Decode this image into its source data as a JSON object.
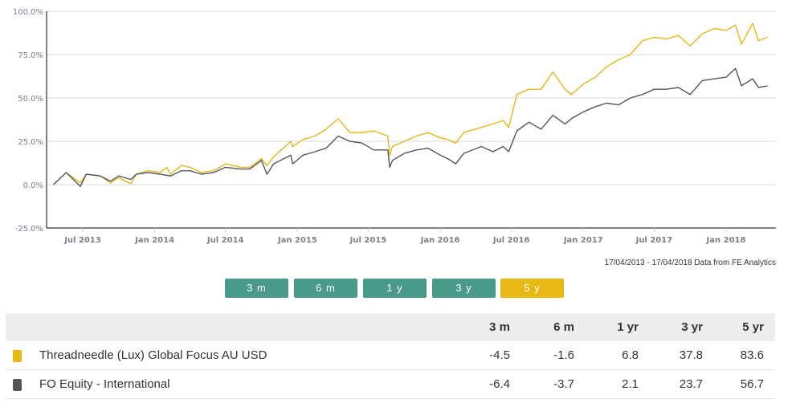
{
  "chart_data": {
    "type": "line",
    "title": "",
    "xlabel": "",
    "ylabel": "",
    "ylim": [
      -25,
      100
    ],
    "xlim": [
      "2013-04-17",
      "2018-04-17"
    ],
    "yticks": [
      "-25.0%",
      "0.0%",
      "25.0%",
      "50.0%",
      "75.0%",
      "100.0%"
    ],
    "ytick_values": [
      -25,
      0,
      25,
      50,
      75,
      100
    ],
    "xticks": [
      {
        "label": "Jul 2013",
        "date": "2013-07-01"
      },
      {
        "label": "Jan 2014",
        "date": "2014-01-01"
      },
      {
        "label": "Jul 2014",
        "date": "2014-07-01"
      },
      {
        "label": "Jan 2015",
        "date": "2015-01-01"
      },
      {
        "label": "Jul 2015",
        "date": "2015-07-01"
      },
      {
        "label": "Jan 2016",
        "date": "2016-01-01"
      },
      {
        "label": "Jul 2016",
        "date": "2016-07-01"
      },
      {
        "label": "Jan 2017",
        "date": "2017-01-01"
      },
      {
        "label": "Jul 2017",
        "date": "2017-07-01"
      },
      {
        "label": "Jan 2018",
        "date": "2018-01-01"
      }
    ],
    "grid": true,
    "series": [
      {
        "name": "Threadneedle (Lux) Global Focus AU USD",
        "color": "#e3b71b",
        "points": [
          [
            "2013-04-17",
            0
          ],
          [
            "2013-05-20",
            7
          ],
          [
            "2013-06-25",
            1
          ],
          [
            "2013-07-10",
            6
          ],
          [
            "2013-08-15",
            5
          ],
          [
            "2013-09-10",
            1
          ],
          [
            "2013-10-01",
            4
          ],
          [
            "2013-11-01",
            0.5
          ],
          [
            "2013-11-15",
            6
          ],
          [
            "2013-12-15",
            8
          ],
          [
            "2014-01-15",
            7
          ],
          [
            "2014-02-01",
            10
          ],
          [
            "2014-02-10",
            6
          ],
          [
            "2014-03-10",
            11
          ],
          [
            "2014-04-01",
            10
          ],
          [
            "2014-05-01",
            7
          ],
          [
            "2014-06-01",
            8
          ],
          [
            "2014-07-01",
            12
          ],
          [
            "2014-08-10",
            10
          ],
          [
            "2014-09-01",
            10
          ],
          [
            "2014-10-01",
            15
          ],
          [
            "2014-10-15",
            11
          ],
          [
            "2014-11-01",
            16
          ],
          [
            "2014-12-15",
            25
          ],
          [
            "2014-12-20",
            22
          ],
          [
            "2015-01-15",
            26
          ],
          [
            "2015-02-15",
            28
          ],
          [
            "2015-03-15",
            32
          ],
          [
            "2015-04-15",
            38
          ],
          [
            "2015-05-15",
            30
          ],
          [
            "2015-06-15",
            30
          ],
          [
            "2015-07-15",
            31
          ],
          [
            "2015-08-20",
            28
          ],
          [
            "2015-08-25",
            17
          ],
          [
            "2015-09-01",
            22
          ],
          [
            "2015-10-01",
            25
          ],
          [
            "2015-11-01",
            28
          ],
          [
            "2015-12-01",
            30
          ],
          [
            "2016-01-01",
            27
          ],
          [
            "2016-01-20",
            26
          ],
          [
            "2016-02-10",
            24
          ],
          [
            "2016-03-01",
            30
          ],
          [
            "2016-04-15",
            33
          ],
          [
            "2016-05-15",
            35
          ],
          [
            "2016-06-10",
            37
          ],
          [
            "2016-06-24",
            33
          ],
          [
            "2016-07-15",
            52
          ],
          [
            "2016-08-15",
            55
          ],
          [
            "2016-09-15",
            55
          ],
          [
            "2016-10-15",
            65
          ],
          [
            "2016-11-15",
            55
          ],
          [
            "2016-12-01",
            52
          ],
          [
            "2017-01-01",
            58
          ],
          [
            "2017-02-01",
            62
          ],
          [
            "2017-03-01",
            68
          ],
          [
            "2017-04-01",
            72
          ],
          [
            "2017-05-01",
            75
          ],
          [
            "2017-06-01",
            83
          ],
          [
            "2017-07-01",
            85
          ],
          [
            "2017-08-01",
            84
          ],
          [
            "2017-09-01",
            86
          ],
          [
            "2017-10-01",
            80
          ],
          [
            "2017-11-01",
            87
          ],
          [
            "2017-12-01",
            90
          ],
          [
            "2018-01-01",
            89
          ],
          [
            "2018-01-25",
            92
          ],
          [
            "2018-02-09",
            81
          ],
          [
            "2018-03-10",
            93
          ],
          [
            "2018-03-25",
            83
          ],
          [
            "2018-04-17",
            85
          ]
        ]
      },
      {
        "name": "FO Equity - International",
        "color": "#55565c",
        "points": [
          [
            "2013-04-17",
            0
          ],
          [
            "2013-05-20",
            7
          ],
          [
            "2013-06-25",
            -1
          ],
          [
            "2013-07-10",
            6
          ],
          [
            "2013-08-15",
            5
          ],
          [
            "2013-09-10",
            2
          ],
          [
            "2013-10-01",
            5
          ],
          [
            "2013-11-01",
            3
          ],
          [
            "2013-11-15",
            6
          ],
          [
            "2013-12-15",
            7
          ],
          [
            "2014-01-15",
            6
          ],
          [
            "2014-02-10",
            5
          ],
          [
            "2014-03-10",
            8
          ],
          [
            "2014-04-01",
            8
          ],
          [
            "2014-05-01",
            6
          ],
          [
            "2014-06-01",
            7
          ],
          [
            "2014-07-01",
            10
          ],
          [
            "2014-08-10",
            9
          ],
          [
            "2014-09-01",
            9
          ],
          [
            "2014-10-01",
            14
          ],
          [
            "2014-10-15",
            6
          ],
          [
            "2014-11-01",
            12
          ],
          [
            "2014-12-15",
            17
          ],
          [
            "2014-12-20",
            12
          ],
          [
            "2015-01-15",
            17
          ],
          [
            "2015-02-15",
            19
          ],
          [
            "2015-03-15",
            21
          ],
          [
            "2015-04-15",
            28
          ],
          [
            "2015-05-15",
            25
          ],
          [
            "2015-06-15",
            24
          ],
          [
            "2015-07-15",
            20
          ],
          [
            "2015-08-20",
            20
          ],
          [
            "2015-08-25",
            10
          ],
          [
            "2015-09-01",
            14
          ],
          [
            "2015-10-01",
            18
          ],
          [
            "2015-11-01",
            20
          ],
          [
            "2015-12-01",
            21
          ],
          [
            "2016-01-01",
            17
          ],
          [
            "2016-01-20",
            15
          ],
          [
            "2016-02-10",
            12
          ],
          [
            "2016-03-01",
            18
          ],
          [
            "2016-04-15",
            22
          ],
          [
            "2016-05-15",
            19
          ],
          [
            "2016-06-10",
            22
          ],
          [
            "2016-06-24",
            19
          ],
          [
            "2016-07-15",
            31
          ],
          [
            "2016-08-15",
            36
          ],
          [
            "2016-09-15",
            32
          ],
          [
            "2016-10-15",
            40
          ],
          [
            "2016-11-15",
            35
          ],
          [
            "2016-12-01",
            38
          ],
          [
            "2017-01-01",
            42
          ],
          [
            "2017-02-01",
            45
          ],
          [
            "2017-03-01",
            47
          ],
          [
            "2017-04-01",
            46
          ],
          [
            "2017-05-01",
            50
          ],
          [
            "2017-06-01",
            52
          ],
          [
            "2017-07-01",
            55
          ],
          [
            "2017-08-01",
            55
          ],
          [
            "2017-09-01",
            56
          ],
          [
            "2017-10-01",
            52
          ],
          [
            "2017-11-01",
            60
          ],
          [
            "2017-12-01",
            61
          ],
          [
            "2018-01-01",
            62
          ],
          [
            "2018-01-25",
            67
          ],
          [
            "2018-02-09",
            57
          ],
          [
            "2018-03-10",
            61
          ],
          [
            "2018-03-25",
            56
          ],
          [
            "2018-04-17",
            57
          ]
        ]
      }
    ]
  },
  "source_note": "17/04/2013 - 17/04/2018 Data from FE Analytics",
  "period_buttons": [
    {
      "label": "3 m",
      "active": false
    },
    {
      "label": "6 m",
      "active": false
    },
    {
      "label": "1 y",
      "active": false
    },
    {
      "label": "3 y",
      "active": false
    },
    {
      "label": "5 y",
      "active": true
    }
  ],
  "colors": {
    "button": "#4a9a89",
    "button_active": "#e8b812",
    "header_bg": "#efedec"
  },
  "table": {
    "columns": [
      "3 m",
      "6 m",
      "1 yr",
      "3 yr",
      "5 yr"
    ],
    "rows": [
      {
        "name": "Threadneedle (Lux) Global Focus AU USD",
        "color": "#e8b812",
        "values": [
          "-4.5",
          "-1.6",
          "6.8",
          "37.8",
          "83.6"
        ]
      },
      {
        "name": "FO Equity - International",
        "color": "#55565c",
        "values": [
          "-6.4",
          "-3.7",
          "2.1",
          "23.7",
          "56.7"
        ]
      }
    ]
  }
}
